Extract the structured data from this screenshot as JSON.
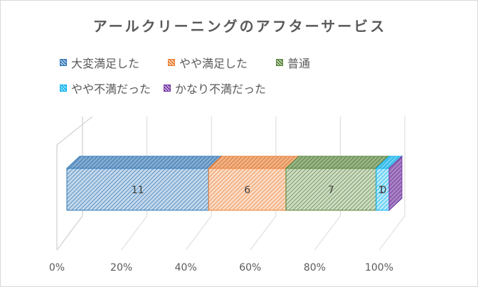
{
  "chart_data": {
    "type": "bar",
    "orientation": "horizontal",
    "stacked": "percent",
    "three_d": true,
    "title": "アールクリーニングのアフターサービス",
    "xlabel": "",
    "ylabel": "",
    "xlim": [
      0,
      1
    ],
    "x_ticks": [
      "0%",
      "20%",
      "40%",
      "60%",
      "80%",
      "100%"
    ],
    "legend_position": "top",
    "series": [
      {
        "name": "大変満足した",
        "values": [
          11
        ],
        "color": "#2e75b6"
      },
      {
        "name": "やや満足した",
        "values": [
          6
        ],
        "color": "#ed7d31"
      },
      {
        "name": "普通",
        "values": [
          7
        ],
        "color": "#548235"
      },
      {
        "name": "やや不満だった",
        "values": [
          1
        ],
        "color": "#00b0f0"
      },
      {
        "name": "かなり不満だった",
        "values": [
          0
        ],
        "color": "#7030a0"
      }
    ],
    "data_labels": [
      "11",
      "6",
      "7",
      "1",
      "0"
    ]
  }
}
